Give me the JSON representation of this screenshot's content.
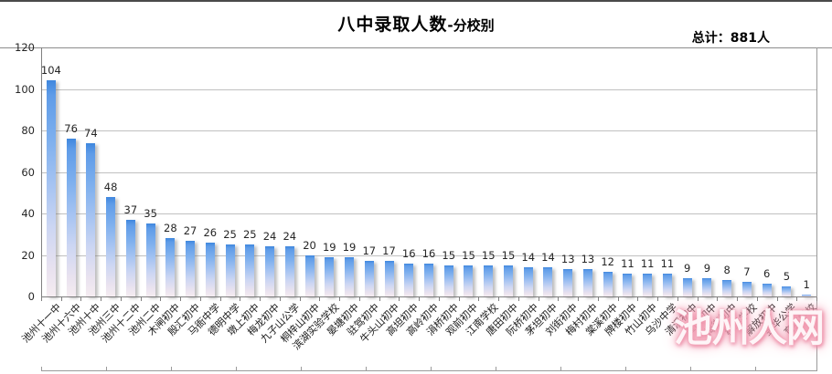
{
  "page": {
    "watermark": "池州人网"
  },
  "chart_data": {
    "type": "bar",
    "title": "八中录取人数",
    "title_suffix": "-分校别",
    "total_label": "总计：881人",
    "categories": [
      "池州十一中",
      "池州十六中",
      "池州十中",
      "池州三中",
      "池州十二中",
      "池州二中",
      "木闸初中",
      "殷汇初中",
      "马衙中学",
      "德明中学",
      "墩上初中",
      "梅龙初中",
      "九子山公学",
      "桐梓山初中",
      "滨湖实验学校",
      "晏塘初中",
      "驻驾初中",
      "牛头山初中",
      "高坦初中",
      "高岭初中",
      "涓桥初中",
      "观前初中",
      "江南学校",
      "唐田初中",
      "阮桥初中",
      "茅坦初中",
      "刘街初中",
      "梅村初中",
      "棠溪初中",
      "牌楼初中",
      "竹山初中",
      "乌沙中学",
      "清溪初中",
      "灌口初中",
      "梅街初中",
      "梅里学校",
      "解放初中",
      "昱华公学",
      "育英学校"
    ],
    "values": [
      104,
      76,
      74,
      48,
      37,
      35,
      28,
      27,
      26,
      25,
      25,
      24,
      24,
      20,
      19,
      19,
      17,
      17,
      16,
      16,
      15,
      15,
      15,
      15,
      14,
      14,
      13,
      13,
      12,
      11,
      11,
      11,
      9,
      9,
      8,
      7,
      6,
      5,
      1
    ],
    "total": 881,
    "ylim": [
      0,
      120
    ],
    "yticks": [
      0,
      20,
      40,
      60,
      80,
      100,
      120
    ],
    "grid": true,
    "legend": "none",
    "bar_gradient_top": "#4a8fe3",
    "bar_gradient_bottom": "#f5ecf1",
    "axis_label_color": "#262626",
    "value_label_color": "#262626"
  }
}
